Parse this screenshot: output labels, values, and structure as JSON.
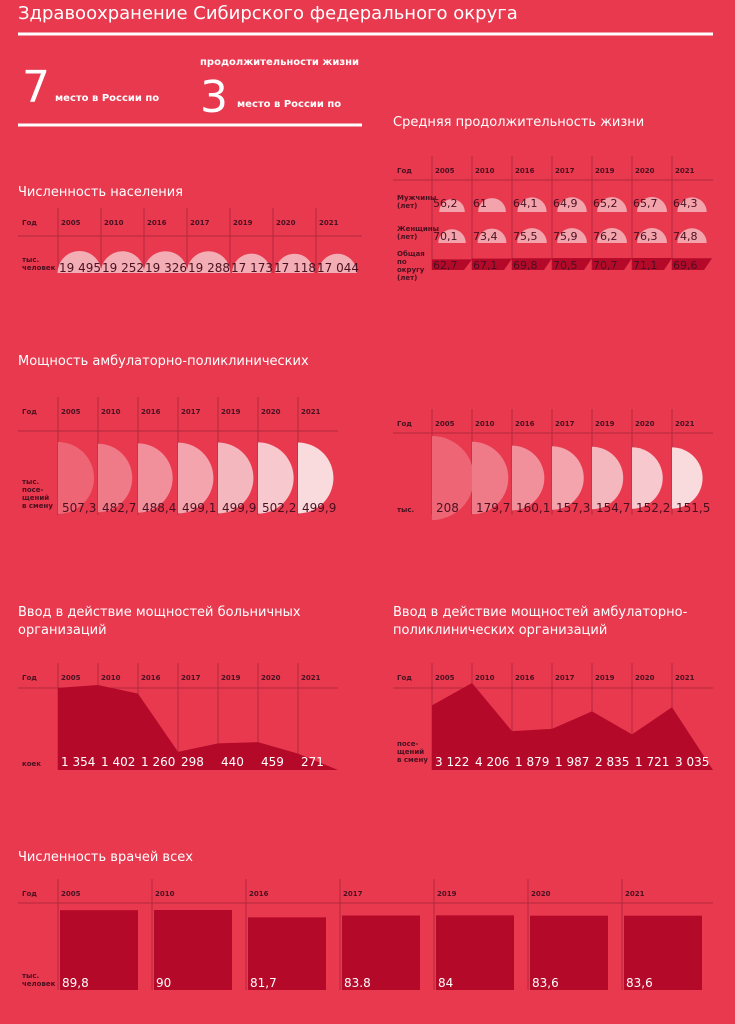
{
  "header": {
    "title": "Здравоохранение Сибирского федерального округа",
    "rank1": "7",
    "rank1_text": "место в России по",
    "rank2_note": "продолжительности жизни",
    "rank2": "3",
    "rank2_text": "место в России по"
  },
  "chart_data": [
    {
      "type": "semicircle",
      "title": "Численность населения",
      "header": "Год",
      "row_label": "тыс. человек",
      "categories": [
        "2005",
        "2010",
        "2016",
        "2017",
        "2019",
        "2020",
        "2021"
      ],
      "values": [
        19495,
        19252,
        19326,
        19288,
        17173,
        17118,
        17044
      ],
      "value_labels": [
        "19 495",
        "19 252",
        "19 326",
        "19 288",
        "17 173",
        "17 118",
        "17 044"
      ],
      "color": "#f3aeb5"
    },
    {
      "type": "semicircle-rows",
      "title": "Средняя продолжительность жизни",
      "header": "Год",
      "categories": [
        "2005",
        "2010",
        "2016",
        "2017",
        "2019",
        "2020",
        "2021"
      ],
      "series": [
        {
          "name": "Мужчины (лет)",
          "color": "#f2a3ab",
          "values": [
            56.2,
            61,
            64.1,
            64.9,
            65.2,
            65.7,
            64.3
          ],
          "value_labels": [
            "56,2",
            "61",
            "64,1",
            "64,9",
            "65,2",
            "65,7",
            "64,3"
          ]
        },
        {
          "name": "Женщины (лет)",
          "color": "#f2a3ab",
          "values": [
            70.1,
            73.4,
            75.5,
            75.9,
            76.2,
            76.3,
            74.8
          ],
          "value_labels": [
            "70,1",
            "73,4",
            "75,5",
            "75,9",
            "76,2",
            "76,3",
            "74,8"
          ]
        },
        {
          "name": "Общая по округу (лет)",
          "color": "#b5092a",
          "values": [
            62.7,
            67.1,
            69.8,
            70.5,
            70.7,
            71.1,
            69.6
          ],
          "value_labels": [
            "62,7",
            "67,1",
            "69,8",
            "70,5",
            "70,7",
            "71,1",
            "69,6"
          ]
        }
      ]
    },
    {
      "type": "half-disc",
      "title": "Мощность амбулаторно-поликлинических",
      "header": "Год",
      "row_label": "тыс. посе- щений в смену",
      "categories": [
        "2005",
        "2010",
        "2016",
        "2017",
        "2019",
        "2020",
        "2021"
      ],
      "values": [
        507.3,
        482.7,
        488.4,
        499.1,
        499.9,
        502.2,
        499.9
      ],
      "value_labels": [
        "507,3",
        "482,7",
        "488,4",
        "499,1",
        "499,9",
        "502,2",
        "499,9"
      ],
      "colors": [
        "#ee6676",
        "#ef7b89",
        "#f1909b",
        "#f3a4ad",
        "#f5b7be",
        "#f7c9ce",
        "#f9dbde"
      ]
    },
    {
      "type": "half-disc",
      "header": "Год",
      "row_label": "тыс.",
      "categories": [
        "2005",
        "2010",
        "2016",
        "2017",
        "2019",
        "2020",
        "2021"
      ],
      "values": [
        208,
        179.7,
        160.1,
        157.3,
        154.7,
        152.2,
        151.5
      ],
      "value_labels": [
        "208",
        "179,7",
        "160,1",
        "157,3",
        "154,7",
        "152,2",
        "151,5"
      ],
      "colors": [
        "#ee6676",
        "#ef7b89",
        "#f1909b",
        "#f3a4ad",
        "#f5b7be",
        "#f7c9ce",
        "#f9dbde"
      ]
    },
    {
      "type": "area",
      "title": "Ввод в действие мощностей больничных организаций",
      "header": "Год",
      "row_label": "коек",
      "categories": [
        "2005",
        "2010",
        "2016",
        "2017",
        "2019",
        "2020",
        "2021"
      ],
      "values": [
        1354,
        1402,
        1260,
        298,
        440,
        459,
        271
      ],
      "value_labels": [
        "1 354",
        "1 402",
        "1 260",
        "298",
        "440",
        "459",
        "271"
      ],
      "color": "#b5092a"
    },
    {
      "type": "area",
      "title": "Ввод в действие мощностей амбулаторно-поликлинических организаций",
      "header": "Год",
      "row_label": "посе- щений в смену",
      "categories": [
        "2005",
        "2010",
        "2016",
        "2017",
        "2019",
        "2020",
        "2021"
      ],
      "values": [
        3122,
        4206,
        1879,
        1987,
        2835,
        1721,
        3035
      ],
      "value_labels": [
        "3 122",
        "4 206",
        "1 879",
        "1 987",
        "2 835",
        "1 721",
        "3 035"
      ],
      "color": "#b5092a"
    },
    {
      "type": "bar",
      "title": "Численность врачей всех",
      "header": "Год",
      "row_label": "тыс. человек",
      "categories": [
        "2005",
        "2010",
        "2016",
        "2017",
        "2019",
        "2020",
        "2021"
      ],
      "values": [
        89.8,
        90,
        81.7,
        83.8,
        84,
        83.6,
        83.6
      ],
      "value_labels": [
        "89,8",
        "90",
        "81,7",
        "83.8",
        "84",
        "83,6",
        "83,6"
      ],
      "color": "#b5092a"
    }
  ]
}
